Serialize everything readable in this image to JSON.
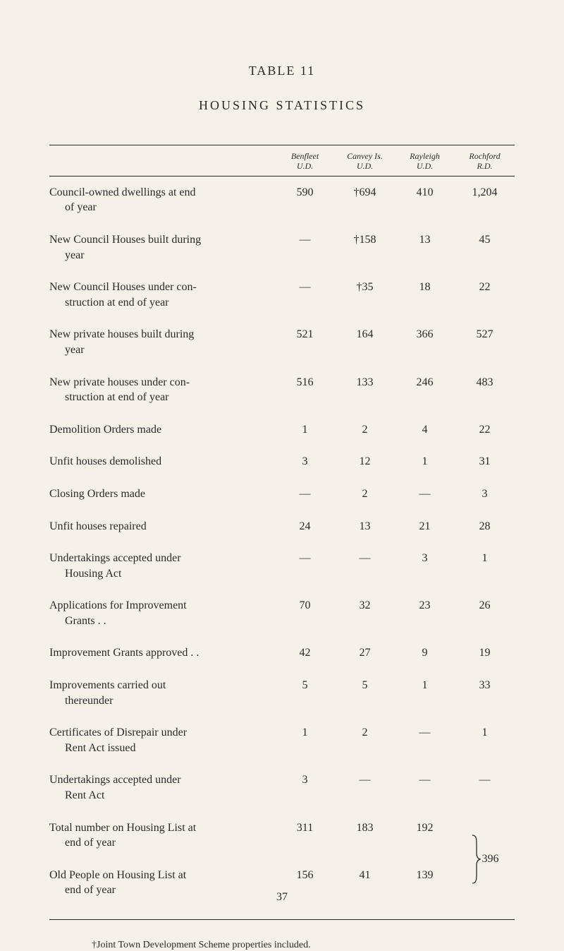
{
  "table_label": "TABLE 11",
  "table_title": "HOUSING STATISTICS",
  "columns": [
    {
      "line1": "Benfleet",
      "line2": "U.D."
    },
    {
      "line1": "Canvey Is.",
      "line2": "U.D."
    },
    {
      "line1": "Rayleigh",
      "line2": "U.D."
    },
    {
      "line1": "Rochford",
      "line2": "R.D."
    }
  ],
  "rows": [
    {
      "label_line1": "Council-owned dwellings at end",
      "label_line2": "of year",
      "v": [
        "590",
        "†694",
        "410",
        "1,204"
      ]
    },
    {
      "label_line1": "New Council Houses built during",
      "label_line2": "year",
      "v": [
        "—",
        "†158",
        "13",
        "45"
      ]
    },
    {
      "label_line1": "New Council Houses under con-",
      "label_line2": "struction at end of year",
      "v": [
        "—",
        "†35",
        "18",
        "22"
      ]
    },
    {
      "label_line1": "New private houses built during",
      "label_line2": "year",
      "v": [
        "521",
        "164",
        "366",
        "527"
      ]
    },
    {
      "label_line1": "New private houses under con-",
      "label_line2": "struction at end of year",
      "v": [
        "516",
        "133",
        "246",
        "483"
      ]
    },
    {
      "label_line1": "Demolition Orders made",
      "label_line2": "",
      "v": [
        "1",
        "2",
        "4",
        "22"
      ]
    },
    {
      "label_line1": "Unfit houses demolished",
      "label_line2": "",
      "v": [
        "3",
        "12",
        "1",
        "31"
      ]
    },
    {
      "label_line1": "Closing Orders made",
      "label_line2": "",
      "v": [
        "—",
        "2",
        "—",
        "3"
      ]
    },
    {
      "label_line1": "Unfit houses repaired",
      "label_line2": "",
      "v": [
        "24",
        "13",
        "21",
        "28"
      ]
    },
    {
      "label_line1": "Undertakings accepted under",
      "label_line2": "Housing Act",
      "v": [
        "—",
        "—",
        "3",
        "1"
      ]
    },
    {
      "label_line1": "Applications for Improvement",
      "label_line2": "Grants   . .",
      "v": [
        "70",
        "32",
        "23",
        "26"
      ]
    },
    {
      "label_line1": "Improvement Grants approved . .",
      "label_line2": "",
      "v": [
        "42",
        "27",
        "9",
        "19"
      ]
    },
    {
      "label_line1": "Improvements carried out",
      "label_line2": "thereunder",
      "v": [
        "5",
        "5",
        "1",
        "33"
      ]
    },
    {
      "label_line1": "Certificates of Disrepair under",
      "label_line2": "Rent Act issued",
      "v": [
        "1",
        "2",
        "—",
        "1"
      ]
    },
    {
      "label_line1": "Undertakings   accepted   under",
      "label_line2": "Rent Act",
      "v": [
        "3",
        "—",
        "—",
        "—"
      ]
    }
  ],
  "braced_rows": [
    {
      "label_line1": "Total number on Housing List at",
      "label_line2": "end of year",
      "v": [
        "311",
        "183",
        "192"
      ]
    },
    {
      "label_line1": "Old People on Housing List at",
      "label_line2": "end of year",
      "v": [
        "156",
        "41",
        "139"
      ]
    }
  ],
  "brace_value": "396",
  "footnote": "†Joint Town Development Scheme properties included.",
  "page_number": "37",
  "colors": {
    "page_bg": "#f5f1e8",
    "text": "#2a2a2a",
    "rule": "#2a2a2a"
  },
  "fontsizes": {
    "title": 18,
    "body": 16,
    "header_italic": 12,
    "footnote": 14
  }
}
